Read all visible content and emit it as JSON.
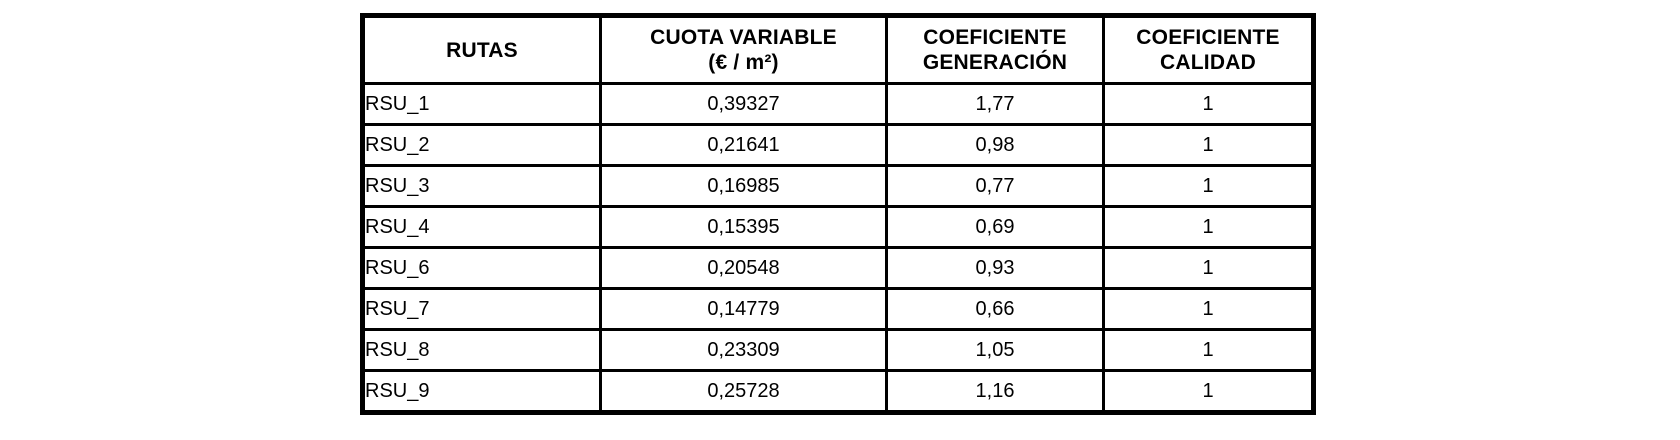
{
  "table": {
    "header": {
      "col1": "RUTAS",
      "col2_line1": "CUOTA VARIABLE",
      "col2_line2": "(€ / m²)",
      "col3_line1": "COEFICIENTE",
      "col3_line2": "GENERACIÓN",
      "col4_line1": "COEFICIENTE",
      "col4_line2": "CALIDAD"
    },
    "rows": [
      [
        "RSU_1",
        "0,39327",
        "1,77",
        "1"
      ],
      [
        "RSU_2",
        "0,21641",
        "0,98",
        "1"
      ],
      [
        "RSU_3",
        "0,16985",
        "0,77",
        "1"
      ],
      [
        "RSU_4",
        "0,15395",
        "0,69",
        "1"
      ],
      [
        "RSU_6",
        "0,20548",
        "0,93",
        "1"
      ],
      [
        "RSU_7",
        "0,14779",
        "0,66",
        "1"
      ],
      [
        "RSU_8",
        "0,23309",
        "1,05",
        "1"
      ],
      [
        "RSU_9",
        "0,25728",
        "1,16",
        "1"
      ]
    ],
    "colors": {
      "border": "#000000",
      "text": "#000000",
      "background": "#ffffff"
    }
  }
}
